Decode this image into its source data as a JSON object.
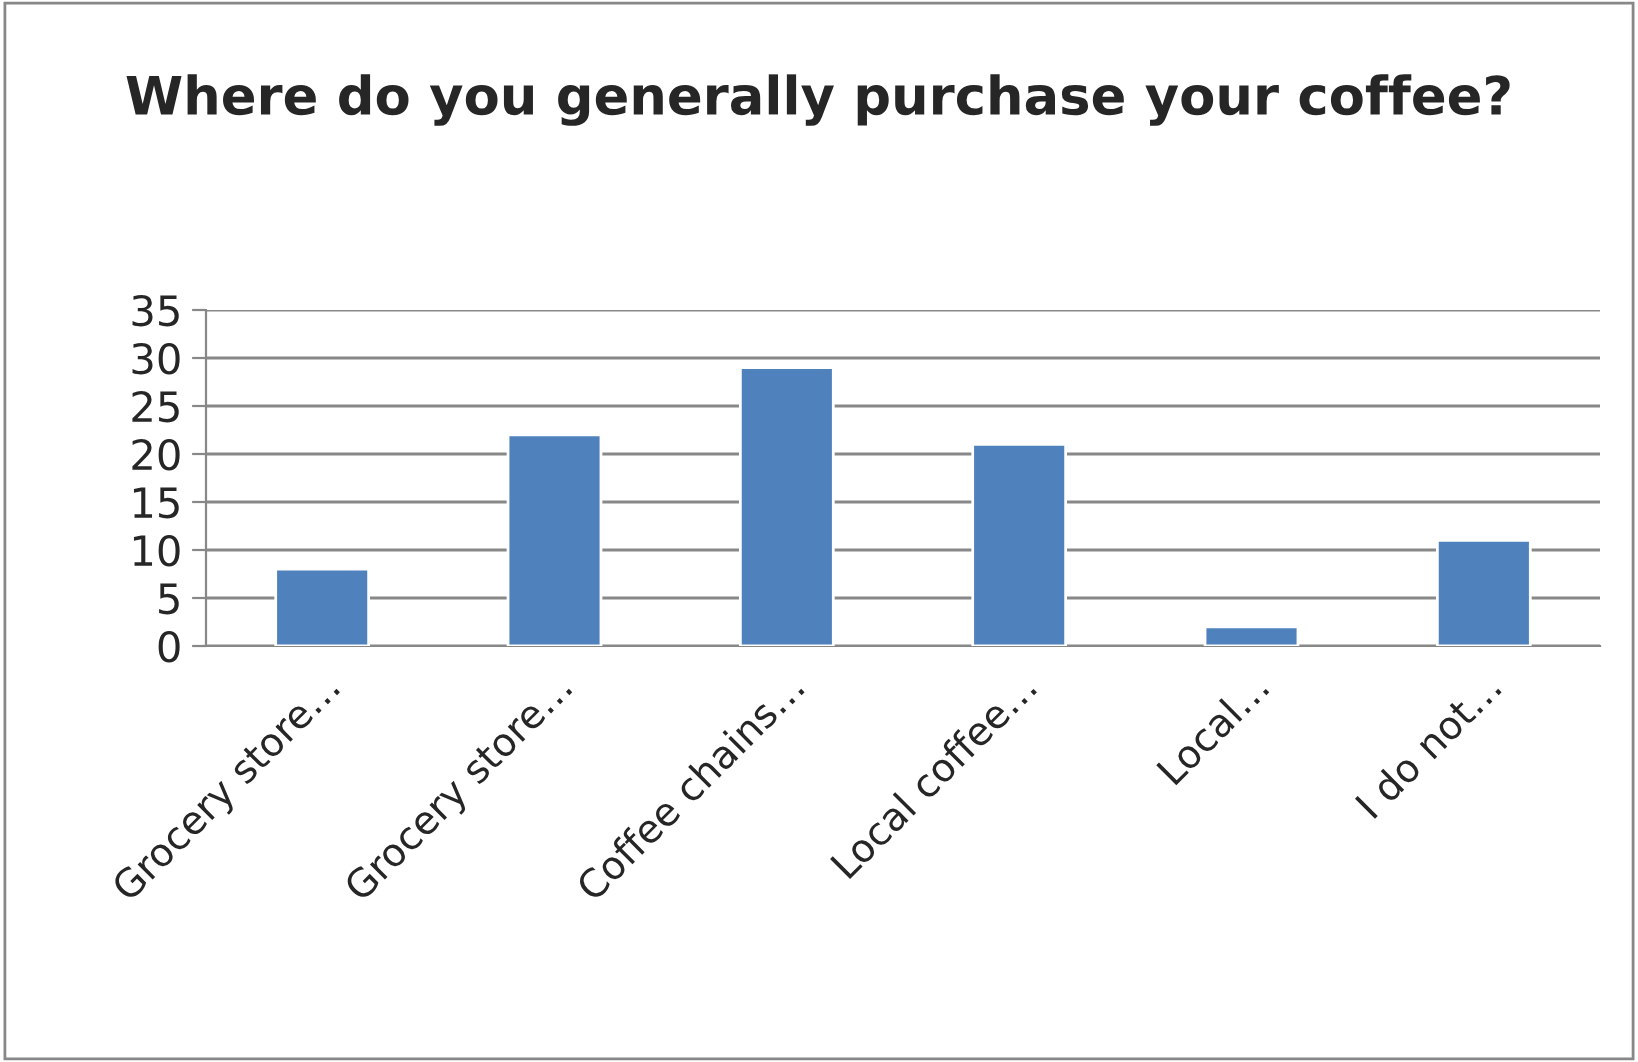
{
  "chart_data": {
    "type": "bar",
    "title": "Where do you generally purchase your coffee?",
    "categories": [
      "Grocery store…",
      "Grocery store…",
      "Coffee chains…",
      "Local coffee…",
      "Local…",
      "I do not…"
    ],
    "values": [
      8,
      22,
      29,
      21,
      2,
      11
    ],
    "color": "#4f81bd",
    "ylim": [
      0,
      35
    ],
    "yticks": [
      0,
      5,
      10,
      15,
      20,
      25,
      30,
      35
    ],
    "grid": "y",
    "legend": false
  }
}
